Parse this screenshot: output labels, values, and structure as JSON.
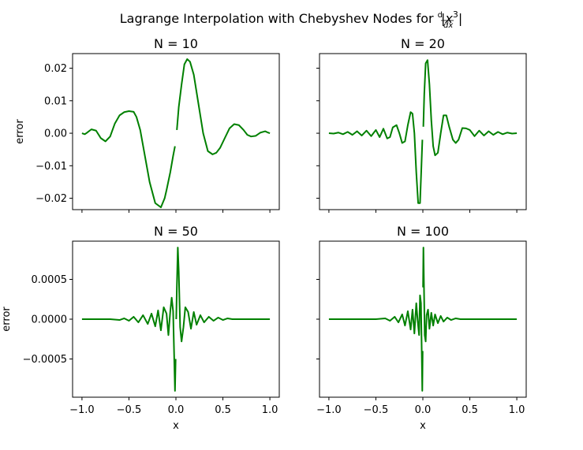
{
  "figure": {
    "title_prefix": "Lagrange Interpolation with Chebyshev Nodes for ",
    "title_math": {
      "d": "d",
      "dx": "dx",
      "body": "|x",
      "power": "3",
      "close": "|"
    }
  },
  "chart_data": [
    {
      "type": "line",
      "title": "N = 10",
      "xlabel": "",
      "ylabel": "error",
      "xlim": [
        -1.1,
        1.1
      ],
      "ylim": [
        -0.0235,
        0.0245
      ],
      "yticks": [
        -0.02,
        -0.01,
        0.0,
        0.01,
        0.02
      ],
      "ytick_labels": [
        "−0.02",
        "−0.01",
        "0.00",
        "0.01",
        "0.02"
      ],
      "xticks": [
        -1.0,
        -0.5,
        0.0,
        0.5,
        1.0
      ],
      "xtick_labels": [],
      "series": [
        {
          "color": "#008000",
          "x": [
            -1.0,
            -0.97,
            -0.95,
            -0.9,
            -0.85,
            -0.8,
            -0.75,
            -0.7,
            -0.65,
            -0.6,
            -0.55,
            -0.5,
            -0.45,
            -0.42,
            -0.38,
            -0.33,
            -0.28,
            -0.22,
            -0.16,
            -0.12,
            -0.1,
            -0.06,
            -0.03,
            -0.01,
            null,
            0.01,
            0.03,
            0.06,
            0.09,
            0.12,
            0.15,
            0.19,
            0.24,
            0.29,
            0.34,
            0.39,
            0.43,
            0.47,
            0.52,
            0.57,
            0.62,
            0.67,
            0.72,
            0.76,
            0.8,
            0.85,
            0.9,
            0.95,
            0.98,
            1.0
          ],
          "y": [
            0.0,
            -0.0003,
            0.0001,
            0.0012,
            0.0008,
            -0.0015,
            -0.0025,
            -0.001,
            0.003,
            0.0055,
            0.0065,
            0.0068,
            0.0066,
            0.005,
            0.001,
            -0.007,
            -0.015,
            -0.0215,
            -0.0228,
            -0.02,
            -0.0175,
            -0.012,
            -0.007,
            -0.004,
            null,
            0.001,
            0.008,
            0.015,
            0.0212,
            0.0228,
            0.022,
            0.018,
            0.009,
            0.0,
            -0.0055,
            -0.0065,
            -0.006,
            -0.0045,
            -0.0015,
            0.0015,
            0.0028,
            0.0025,
            0.001,
            -0.0005,
            -0.001,
            -0.0008,
            0.0002,
            0.0006,
            0.0002,
            0.0
          ]
        }
      ]
    },
    {
      "type": "line",
      "title": "N = 20",
      "xlabel": "",
      "ylabel": "",
      "xlim": [
        -1.1,
        1.1
      ],
      "ylim": [
        -0.0235,
        0.0245
      ],
      "yticks": [
        -0.02,
        -0.01,
        0.0,
        0.01,
        0.02
      ],
      "ytick_labels": [],
      "xticks": [
        -1.0,
        -0.5,
        0.0,
        0.5,
        1.0
      ],
      "xtick_labels": [],
      "series": [
        {
          "color": "#008000",
          "x": [
            -1.0,
            -0.95,
            -0.9,
            -0.85,
            -0.8,
            -0.75,
            -0.7,
            -0.65,
            -0.6,
            -0.55,
            -0.5,
            -0.46,
            -0.42,
            -0.38,
            -0.35,
            -0.32,
            -0.28,
            -0.25,
            -0.22,
            -0.19,
            -0.16,
            -0.13,
            -0.11,
            -0.09,
            -0.07,
            -0.05,
            -0.03,
            -0.015,
            -0.005,
            null,
            0.005,
            0.015,
            0.03,
            0.05,
            0.07,
            0.09,
            0.11,
            0.13,
            0.16,
            0.19,
            0.22,
            0.25,
            0.28,
            0.32,
            0.35,
            0.38,
            0.42,
            0.46,
            0.5,
            0.55,
            0.6,
            0.65,
            0.7,
            0.75,
            0.8,
            0.85,
            0.9,
            0.95,
            1.0
          ],
          "y": [
            0.0,
            -0.0001,
            0.0002,
            -0.0003,
            0.0004,
            -0.0005,
            0.0006,
            -0.0007,
            0.0008,
            -0.0009,
            0.001,
            -0.0012,
            0.0014,
            -0.0016,
            -0.0012,
            0.0018,
            0.0025,
            0.0,
            -0.003,
            -0.0025,
            0.0025,
            0.0065,
            0.006,
            0.0,
            -0.012,
            -0.0215,
            -0.0215,
            -0.01,
            -0.002,
            null,
            0.002,
            0.012,
            0.0215,
            0.0225,
            0.015,
            0.004,
            -0.004,
            -0.0068,
            -0.006,
            0.0,
            0.0055,
            0.0055,
            0.002,
            -0.002,
            -0.003,
            -0.002,
            0.0016,
            0.0015,
            0.001,
            -0.0009,
            0.0008,
            -0.0007,
            0.0006,
            -0.0005,
            0.0004,
            -0.0003,
            0.0002,
            -0.0001,
            0.0
          ]
        }
      ]
    },
    {
      "type": "line",
      "title": "N = 50",
      "xlabel": "x",
      "ylabel": "error",
      "xlim": [
        -1.1,
        1.1
      ],
      "ylim": [
        -0.00098,
        0.00098
      ],
      "yticks": [
        -0.0005,
        0.0,
        0.0005
      ],
      "ytick_labels": [
        "−0.0005",
        "0.0000",
        "0.0005"
      ],
      "xticks": [
        -1.0,
        -0.5,
        0.0,
        0.5,
        1.0
      ],
      "xtick_labels": [
        "−1.0",
        "−0.5",
        "0.0",
        "0.5",
        "1.0"
      ],
      "series": [
        {
          "color": "#008000",
          "x": [
            -1.0,
            -0.7,
            -0.6,
            -0.55,
            -0.5,
            -0.45,
            -0.4,
            -0.35,
            -0.3,
            -0.26,
            -0.22,
            -0.19,
            -0.16,
            -0.13,
            -0.1,
            -0.08,
            -0.06,
            -0.045,
            -0.03,
            -0.02,
            -0.01,
            -0.003,
            null,
            0.003,
            0.01,
            0.02,
            0.03,
            0.045,
            0.06,
            0.08,
            0.1,
            0.13,
            0.16,
            0.19,
            0.22,
            0.26,
            0.3,
            0.35,
            0.4,
            0.45,
            0.5,
            0.55,
            0.6,
            0.7,
            1.0
          ],
          "y": [
            0.0,
            0.0,
            -1e-05,
            1e-05,
            -2e-05,
            3e-05,
            -4e-05,
            5e-05,
            -6e-05,
            7e-05,
            -9e-05,
            0.00011,
            -0.00014,
            0.00015,
            7e-05,
            -0.0002,
            0.0001,
            0.00027,
            0.0001,
            -0.0004,
            -0.0009,
            -0.0005,
            null,
            0.0,
            0.0004,
            0.0009,
            0.0006,
            -0.0001,
            -0.00028,
            -0.0001,
            0.00015,
            9e-05,
            -0.00012,
            9e-05,
            -7e-05,
            5e-05,
            -4e-05,
            3e-05,
            -2e-05,
            2e-05,
            -1e-05,
            1e-05,
            0.0,
            0.0,
            0.0
          ]
        }
      ]
    },
    {
      "type": "line",
      "title": "N = 100",
      "xlabel": "x",
      "ylabel": "",
      "xlim": [
        -1.1,
        1.1
      ],
      "ylim": [
        -0.00098,
        0.00098
      ],
      "yticks": [
        -0.0005,
        0.0,
        0.0005
      ],
      "ytick_labels": [],
      "xticks": [
        -1.0,
        -0.5,
        0.0,
        0.5,
        1.0
      ],
      "xtick_labels": [
        "−1.0",
        "−0.5",
        "0.0",
        "0.5",
        "1.0"
      ],
      "series": [
        {
          "color": "#008000",
          "x": [
            -1.0,
            -0.5,
            -0.4,
            -0.35,
            -0.3,
            -0.26,
            -0.22,
            -0.19,
            -0.16,
            -0.13,
            -0.11,
            -0.09,
            -0.07,
            -0.055,
            -0.04,
            -0.03,
            -0.02,
            -0.012,
            -0.006,
            -0.002,
            null,
            0.002,
            0.006,
            0.012,
            0.02,
            0.03,
            0.04,
            0.055,
            0.07,
            0.09,
            0.11,
            0.13,
            0.16,
            0.19,
            0.22,
            0.26,
            0.3,
            0.35,
            0.4,
            0.5,
            1.0
          ],
          "y": [
            0.0,
            0.0,
            1e-05,
            -2e-05,
            3e-05,
            -4e-05,
            6e-05,
            -8e-05,
            0.0001,
            -0.00013,
            0.00012,
            -0.00018,
            0.0002,
            -2e-05,
            -0.0002,
            0.0003,
            0.0002,
            -0.0004,
            -0.0009,
            -0.0004,
            null,
            0.0004,
            0.0009,
            0.0004,
            -0.0002,
            -0.00028,
            5e-05,
            0.00012,
            -0.00012,
            8e-05,
            -8e-05,
            6e-05,
            -5e-05,
            4e-05,
            -3e-05,
            2e-05,
            -1e-05,
            1e-05,
            0.0,
            0.0,
            0.0
          ]
        }
      ]
    }
  ]
}
